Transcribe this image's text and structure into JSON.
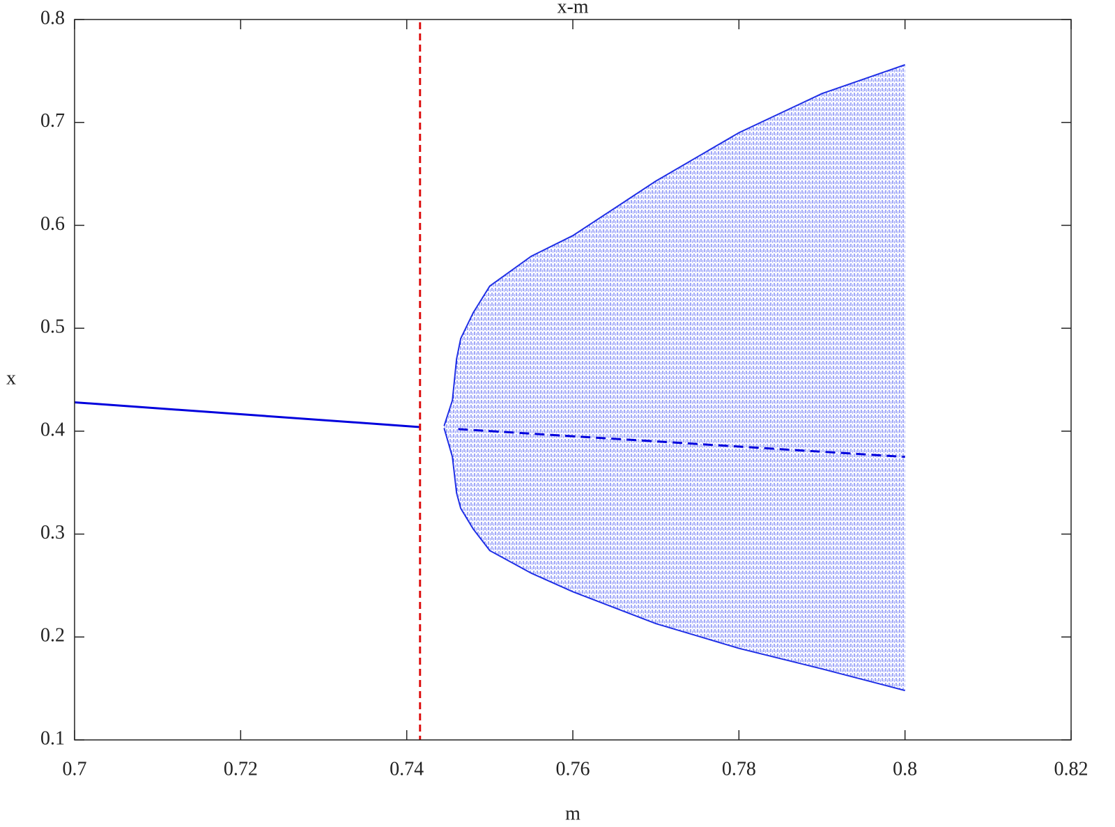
{
  "chart_data": {
    "type": "line",
    "title": "x-m",
    "xlabel": "m",
    "ylabel": "x",
    "xlim": [
      0.7,
      0.82
    ],
    "xticks": [
      0.7,
      0.72,
      0.74,
      0.76,
      0.78,
      0.8,
      0.82
    ],
    "ylim": [
      0.1,
      0.8
    ],
    "yticks": [
      0.1,
      0.2,
      0.3,
      0.4,
      0.5,
      0.6,
      0.7,
      0.8
    ],
    "grid": false,
    "series": [
      {
        "color": "#0000dd",
        "style": "solid",
        "x": [
          0.7,
          0.7416
        ],
        "values": [
          0.428,
          0.404
        ]
      },
      {
        "color": "#0000dd",
        "style": "dashed",
        "x": [
          0.7462,
          0.8
        ],
        "values": [
          0.402,
          0.375
        ]
      }
    ],
    "band": {
      "color": "#1f2fe6",
      "x": [
        0.7445,
        0.7455,
        0.746,
        0.7465,
        0.748,
        0.75,
        0.755,
        0.76,
        0.77,
        0.78,
        0.79,
        0.8
      ],
      "upper": [
        0.405,
        0.43,
        0.47,
        0.49,
        0.515,
        0.541,
        0.57,
        0.59,
        0.643,
        0.69,
        0.728,
        0.756
      ],
      "lower": [
        0.403,
        0.375,
        0.34,
        0.325,
        0.305,
        0.284,
        0.262,
        0.244,
        0.213,
        0.189,
        0.169,
        0.148
      ]
    },
    "vlines": [
      {
        "x": 0.7416,
        "color": "#dd1111",
        "style": "dashed"
      }
    ]
  }
}
